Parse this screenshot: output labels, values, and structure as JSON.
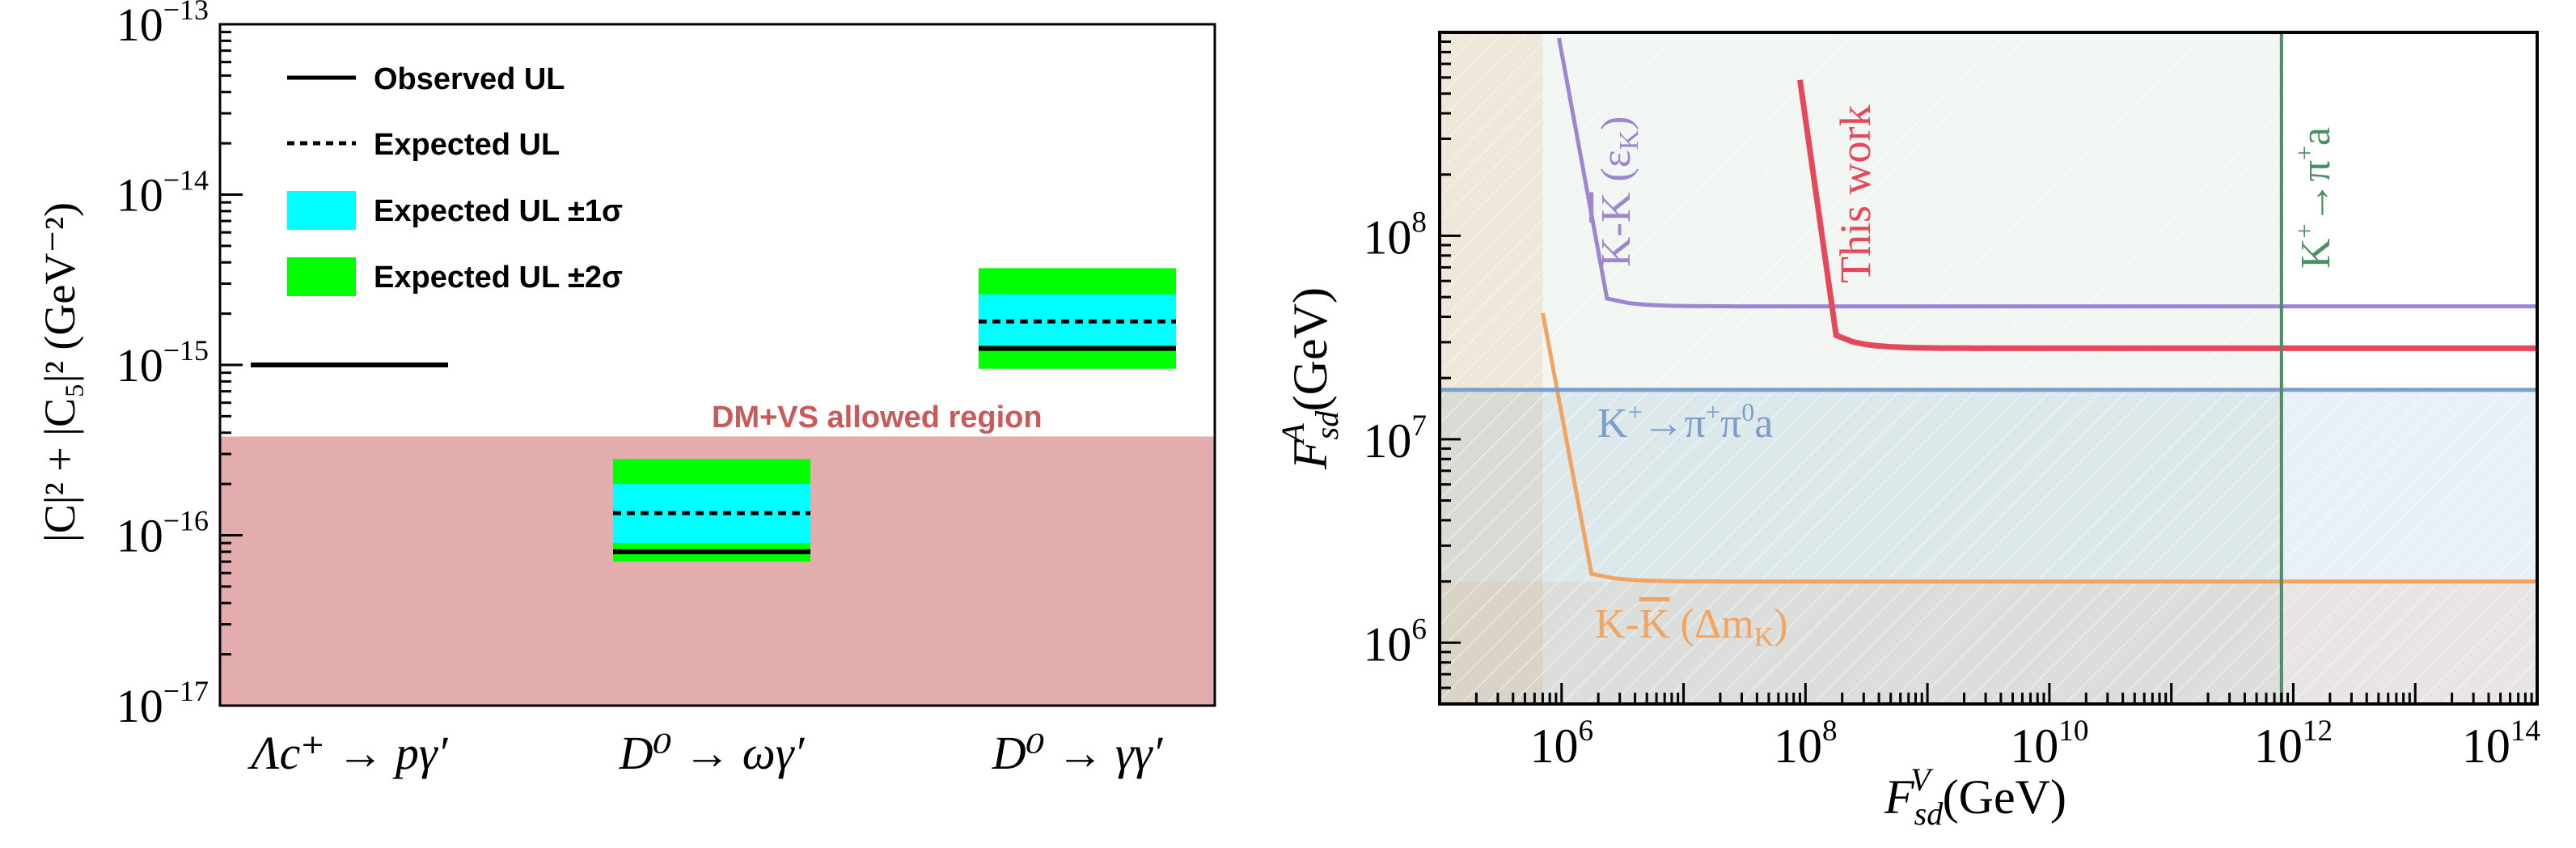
{
  "chart_data": [
    {
      "type": "bar",
      "yscale": "log",
      "ylim": [
        1e-17,
        1e-13
      ],
      "yticks": [
        {
          "value": 1e-13,
          "base": "10",
          "exp": "−13"
        },
        {
          "value": 1e-14,
          "base": "10",
          "exp": "−14"
        },
        {
          "value": 1e-15,
          "base": "10",
          "exp": "−15"
        },
        {
          "value": 1e-16,
          "base": "10",
          "exp": "−16"
        },
        {
          "value": 1e-17,
          "base": "10",
          "exp": "−17"
        }
      ],
      "ylabel": "|C|² + |C₅|² (GeV⁻²)",
      "categories": [
        "Λc⁺ → pγ′",
        "D⁰ → ωγ′",
        "D⁰ → γγ′"
      ],
      "allowed_region": {
        "label": "DM+VS allowed region",
        "ymax": 3.8e-16,
        "color": "#e4adad"
      },
      "legend": {
        "observed": "Observed UL",
        "expected": "Expected UL",
        "band1": "Expected UL  ±1σ",
        "band2": "Expected UL  ±2σ"
      },
      "series": [
        {
          "category": "Λc⁺ → pγ′",
          "observed": 1e-15
        },
        {
          "category": "D⁰ → ωγ′",
          "observed": 8e-17,
          "expected": 1.35e-16,
          "band1": [
            9e-17,
            2e-16
          ],
          "band2": [
            7e-17,
            2.8e-16
          ]
        },
        {
          "category": "D⁰ → γγ′",
          "observed": 1.25e-15,
          "expected": 1.8e-15,
          "band1": [
            1.3e-15,
            2.6e-15
          ],
          "band2": [
            9.5e-16,
            3.7e-15
          ]
        }
      ],
      "colors": {
        "band1": "#00ffff",
        "band2": "#00ff00",
        "line": "#000000",
        "region_text": "#c85a5a"
      }
    },
    {
      "type": "line",
      "xscale": "log",
      "yscale": "log",
      "xlim": [
        100000,
        100000000000000
      ],
      "ylim": [
        500000,
        1000000000
      ],
      "xlabel": {
        "main": "F",
        "sub": "sd",
        "sup": "V",
        "unit": " (GeV)"
      },
      "ylabel": {
        "main": "F",
        "sub": "sd",
        "sup": "A",
        "unit": " (GeV)"
      },
      "xticks": [
        {
          "value": 1000000,
          "base": "10",
          "exp": "6"
        },
        {
          "value": 100000000,
          "base": "10",
          "exp": "8"
        },
        {
          "value": 10000000000,
          "base": "10",
          "exp": "10"
        },
        {
          "value": 1000000000000,
          "base": "10",
          "exp": "12"
        },
        {
          "value": 100000000000000,
          "base": "10",
          "exp": "14"
        }
      ],
      "yticks": [
        {
          "value": 1000000,
          "base": "10",
          "exp": "6"
        },
        {
          "value": 10000000,
          "base": "10",
          "exp": "7"
        },
        {
          "value": 100000000,
          "base": "10",
          "exp": "8"
        }
      ],
      "series": [
        {
          "name": "K-K̄ (Δm_K)",
          "color": "#f2a462",
          "x_asymptote": 700000,
          "y_asymptote": 2000000
        },
        {
          "name": "K-K̄ (ε_K)",
          "color": "#9e86cf",
          "x_asymptote": 950000,
          "y_asymptote": 45000000
        },
        {
          "name": "This work",
          "color": "#e4485a",
          "x_asymptote": 90000000,
          "y_asymptote": 28000000
        },
        {
          "name": "K⁺→π⁺π⁰a",
          "color": "#7a9fcc",
          "y_value": 17500000
        },
        {
          "name": "K⁺→π⁺a",
          "color": "#4c8f63",
          "x_value": 800000000000
        }
      ],
      "labels": {
        "dmk": {
          "pre": "K-",
          "bar": "K",
          "mid": " (Δm",
          "sub": "K",
          "post": ")"
        },
        "epsk": {
          "pre": "K-",
          "bar": "K",
          "mid": " (ε",
          "sub": "K",
          "post": ")"
        },
        "this_work": "This work",
        "kpipi0": {
          "k": "K",
          "ksup": "+",
          "arrow": "→",
          "pi": "π",
          "pisup": "+",
          "pi0": "π",
          "pi0sup": "0",
          "a": "a"
        },
        "kpi": {
          "k": "K",
          "ksup": "+",
          "arrow": "→",
          "pi": "π",
          "pisup": "+",
          "a": "a"
        }
      }
    }
  ]
}
